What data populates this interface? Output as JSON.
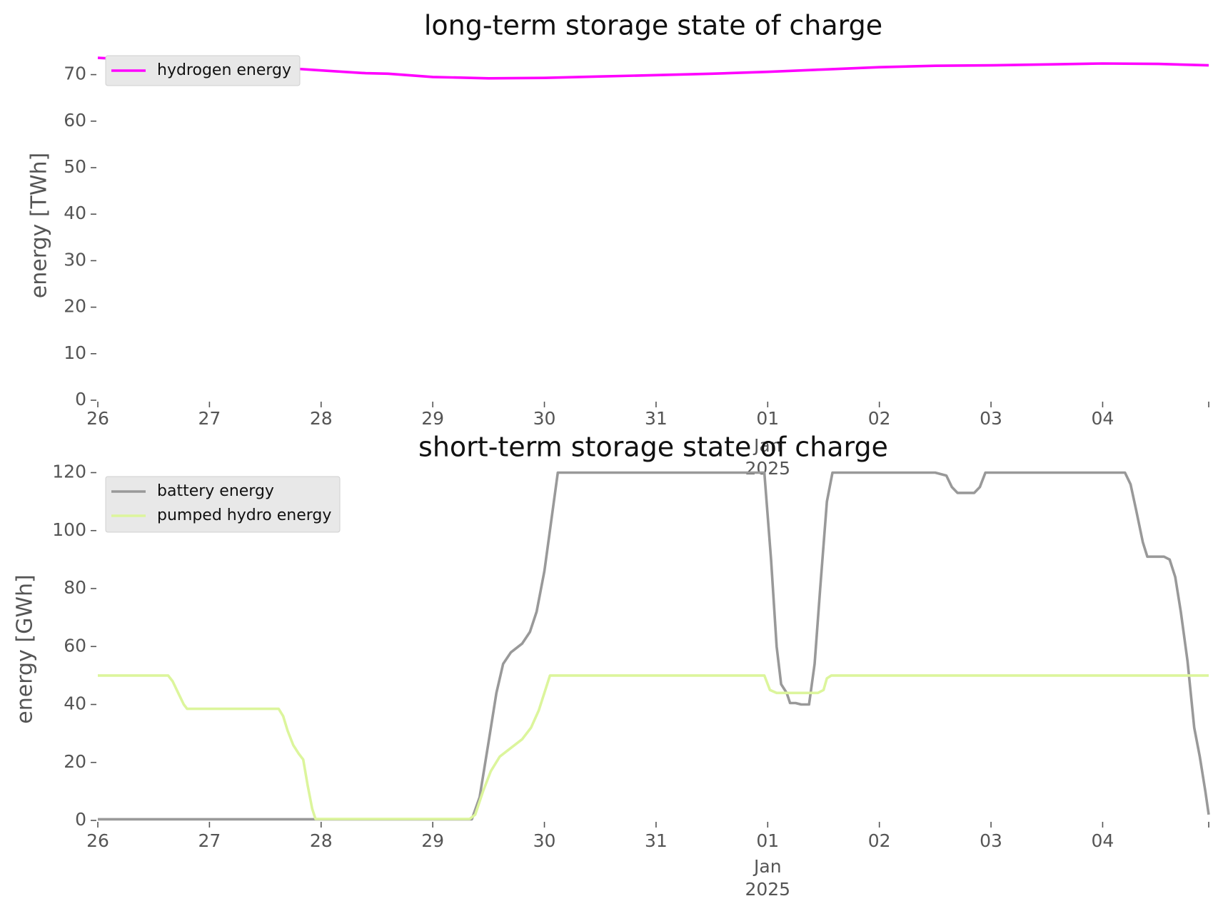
{
  "chart_data": [
    {
      "type": "line",
      "title": "long-term storage state of charge",
      "xlabel": "",
      "ylabel": "energy [TWh]",
      "ylim": [
        0,
        75
      ],
      "yticks": [
        0,
        10,
        20,
        30,
        40,
        50,
        60,
        70
      ],
      "xlim_days": [
        0,
        9.95
      ],
      "xticks": [
        {
          "day": 0,
          "label": "26"
        },
        {
          "day": 1,
          "label": "27"
        },
        {
          "day": 2,
          "label": "28"
        },
        {
          "day": 3,
          "label": "29"
        },
        {
          "day": 4,
          "label": "30"
        },
        {
          "day": 5,
          "label": "31"
        },
        {
          "day": 6,
          "label": "01\nJan\n2025"
        },
        {
          "day": 7,
          "label": "02"
        },
        {
          "day": 8,
          "label": "03"
        },
        {
          "day": 9,
          "label": "04"
        },
        {
          "day": 9.95,
          "label": ""
        }
      ],
      "grid": false,
      "legend": "top-left",
      "series": [
        {
          "name": "hydrogen energy",
          "color": "#ff00ff",
          "points": [
            [
              0,
              73.6
            ],
            [
              0.5,
              73.0
            ],
            [
              1,
              72.3
            ],
            [
              1.5,
              71.7
            ],
            [
              2,
              70.9
            ],
            [
              2.4,
              70.3
            ],
            [
              2.6,
              70.2
            ],
            [
              3,
              69.5
            ],
            [
              3.5,
              69.2
            ],
            [
              4,
              69.3
            ],
            [
              4.5,
              69.6
            ],
            [
              5,
              69.9
            ],
            [
              5.5,
              70.2
            ],
            [
              6,
              70.6
            ],
            [
              6.5,
              71.1
            ],
            [
              7,
              71.6
            ],
            [
              7.5,
              71.9
            ],
            [
              8,
              72.0
            ],
            [
              8.5,
              72.2
            ],
            [
              9,
              72.4
            ],
            [
              9.5,
              72.3
            ],
            [
              9.95,
              72.0
            ]
          ]
        }
      ]
    },
    {
      "type": "line",
      "title": "short-term storage state of charge",
      "xlabel": "",
      "ylabel": "energy [GWh]",
      "ylim": [
        0,
        128
      ],
      "yticks": [
        0,
        20,
        40,
        60,
        80,
        100,
        120
      ],
      "xlim_days": [
        0,
        9.95
      ],
      "xticks": [
        {
          "day": 0,
          "label": "26"
        },
        {
          "day": 1,
          "label": "27"
        },
        {
          "day": 2,
          "label": "28"
        },
        {
          "day": 3,
          "label": "29"
        },
        {
          "day": 4,
          "label": "30"
        },
        {
          "day": 5,
          "label": "31"
        },
        {
          "day": 6,
          "label": "01\nJan\n2025"
        },
        {
          "day": 7,
          "label": "02"
        },
        {
          "day": 8,
          "label": "03"
        },
        {
          "day": 9,
          "label": "04"
        },
        {
          "day": 9.95,
          "label": ""
        }
      ],
      "grid": false,
      "legend": "top-left",
      "series": [
        {
          "name": "battery energy",
          "color": "#999999",
          "points": [
            [
              0,
              0.4
            ],
            [
              3.35,
              0.4
            ],
            [
              3.42,
              8
            ],
            [
              3.5,
              27
            ],
            [
              3.57,
              44
            ],
            [
              3.63,
              54
            ],
            [
              3.7,
              58
            ],
            [
              3.8,
              61
            ],
            [
              3.87,
              65
            ],
            [
              3.93,
              72
            ],
            [
              4,
              86
            ],
            [
              4.06,
              103
            ],
            [
              4.12,
              120
            ],
            [
              4.5,
              120
            ],
            [
              5,
              120
            ],
            [
              5.5,
              120
            ],
            [
              5.97,
              120
            ],
            [
              6.03,
              90
            ],
            [
              6.08,
              60
            ],
            [
              6.12,
              47
            ],
            [
              6.17,
              44
            ],
            [
              6.2,
              40.5
            ],
            [
              6.25,
              40.5
            ],
            [
              6.3,
              40
            ],
            [
              6.37,
              40
            ],
            [
              6.42,
              54
            ],
            [
              6.47,
              80
            ],
            [
              6.53,
              110
            ],
            [
              6.58,
              120
            ],
            [
              7,
              120
            ],
            [
              7.5,
              120
            ],
            [
              7.6,
              119
            ],
            [
              7.65,
              115
            ],
            [
              7.7,
              113
            ],
            [
              7.85,
              113
            ],
            [
              7.9,
              115
            ],
            [
              7.95,
              120
            ],
            [
              8.5,
              120
            ],
            [
              9.2,
              120
            ],
            [
              9.25,
              116
            ],
            [
              9.3,
              107
            ],
            [
              9.36,
              96
            ],
            [
              9.4,
              91
            ],
            [
              9.55,
              91
            ],
            [
              9.6,
              90
            ],
            [
              9.65,
              84
            ],
            [
              9.7,
              72
            ],
            [
              9.76,
              55
            ],
            [
              9.82,
              32
            ],
            [
              9.87,
              22
            ],
            [
              9.92,
              10
            ],
            [
              9.95,
              2
            ]
          ]
        },
        {
          "name": "pumped hydro energy",
          "color": "#dcf59c",
          "points": [
            [
              0,
              50
            ],
            [
              0.63,
              50
            ],
            [
              0.67,
              48
            ],
            [
              0.72,
              44
            ],
            [
              0.77,
              40
            ],
            [
              0.8,
              38.5
            ],
            [
              1.62,
              38.5
            ],
            [
              1.66,
              36
            ],
            [
              1.7,
              31
            ],
            [
              1.75,
              26
            ],
            [
              1.8,
              23
            ],
            [
              1.84,
              21
            ],
            [
              1.88,
              12
            ],
            [
              1.92,
              4
            ],
            [
              1.95,
              0.5
            ],
            [
              3.33,
              0.5
            ],
            [
              3.38,
              2
            ],
            [
              3.45,
              10
            ],
            [
              3.52,
              17
            ],
            [
              3.6,
              22
            ],
            [
              3.7,
              25
            ],
            [
              3.8,
              28
            ],
            [
              3.88,
              32
            ],
            [
              3.95,
              38
            ],
            [
              4,
              44
            ],
            [
              4.05,
              50
            ],
            [
              5,
              50
            ],
            [
              5.97,
              50
            ],
            [
              6.02,
              45
            ],
            [
              6.08,
              44
            ],
            [
              6.25,
              44
            ],
            [
              6.45,
              44
            ],
            [
              6.5,
              45
            ],
            [
              6.53,
              49
            ],
            [
              6.57,
              50
            ],
            [
              7,
              50
            ],
            [
              8,
              50
            ],
            [
              9,
              50
            ],
            [
              9.95,
              50
            ]
          ]
        }
      ]
    }
  ]
}
